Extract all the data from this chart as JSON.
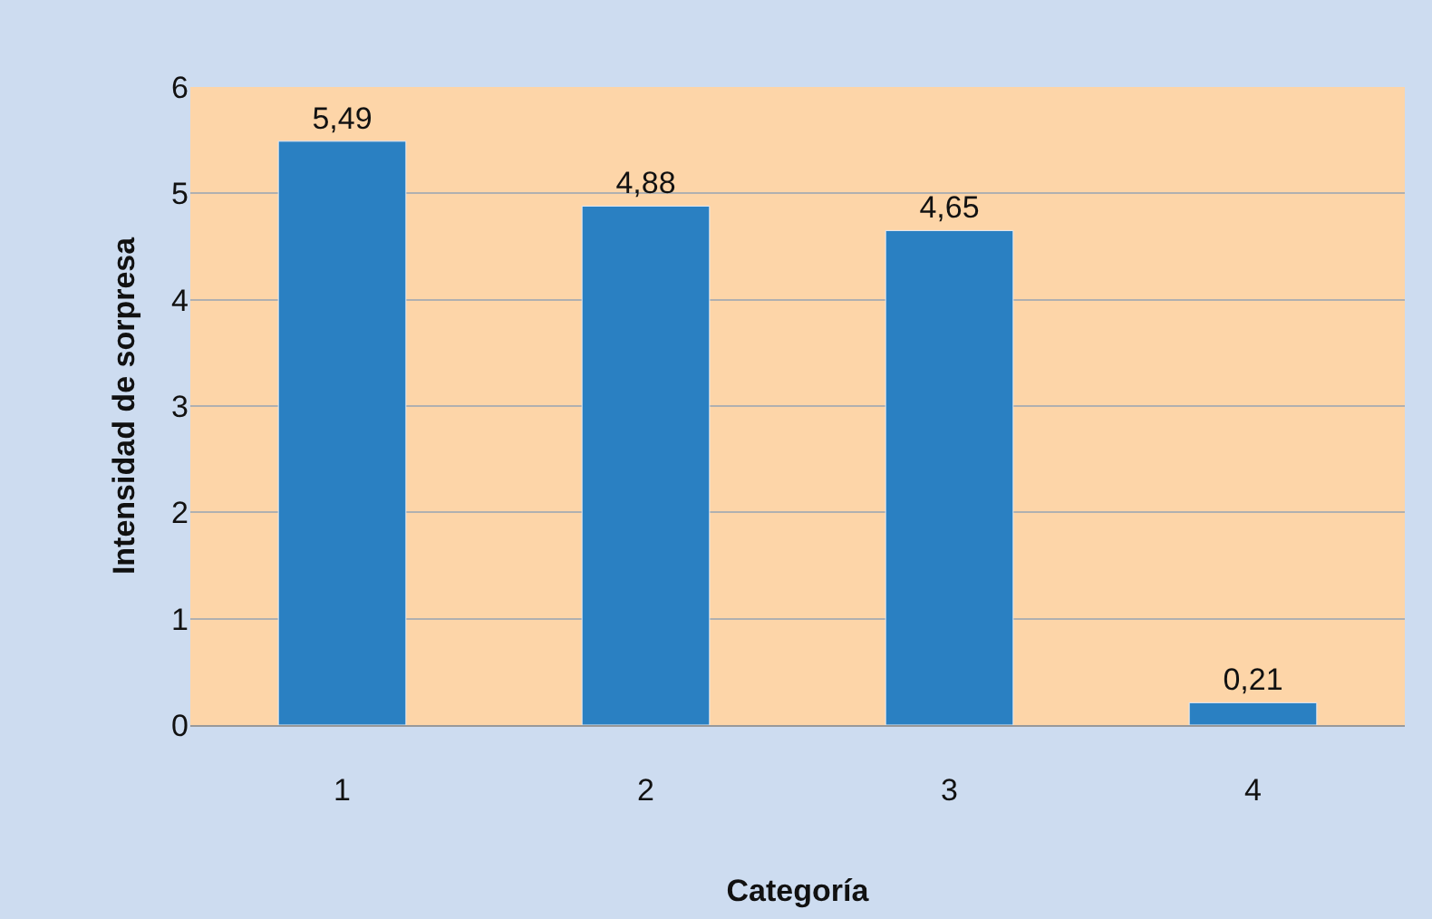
{
  "chart_data": {
    "type": "bar",
    "xlabel": "Categoría",
    "ylabel": "Intensidad de sorpresa",
    "categories": [
      "1",
      "2",
      "3",
      "4"
    ],
    "values": [
      5.49,
      4.88,
      4.65,
      0.21
    ],
    "value_labels": [
      "5,49",
      "4,88",
      "4,65",
      "0,21"
    ],
    "color": "#2a80c2",
    "ylim": [
      0,
      6
    ],
    "yticks": [
      0,
      1,
      2,
      3,
      4,
      5,
      6
    ],
    "grid": "y",
    "legend": false
  }
}
